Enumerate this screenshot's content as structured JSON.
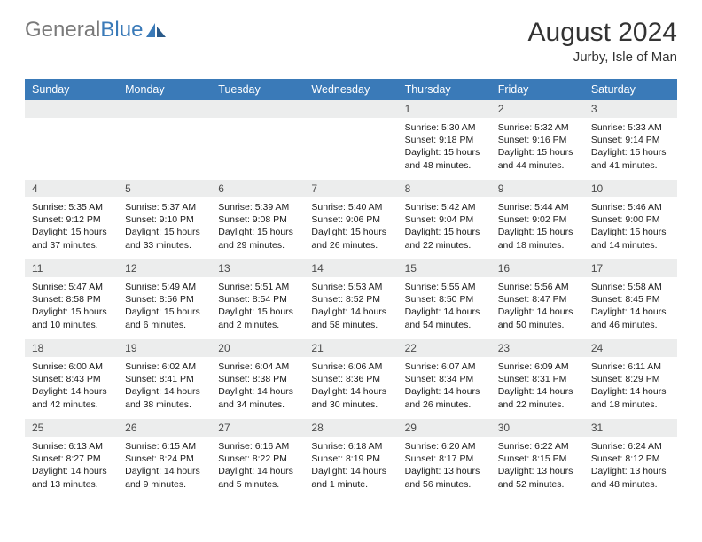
{
  "logo": {
    "textGray": "General",
    "textBlue": "Blue"
  },
  "header": {
    "title": "August 2024",
    "subtitle": "Jurby, Isle of Man"
  },
  "colors": {
    "headerBg": "#3a7ab8",
    "headerText": "#ffffff",
    "dayNumBg": "#eceded",
    "bodyText": "#1a1a1a",
    "logoGray": "#7a7a7a",
    "logoBlue": "#3a7ab8"
  },
  "weekdays": [
    "Sunday",
    "Monday",
    "Tuesday",
    "Wednesday",
    "Thursday",
    "Friday",
    "Saturday"
  ],
  "calendar": {
    "firstWeekday": 4,
    "daysInMonth": 31,
    "days": {
      "1": {
        "sunrise": "5:30 AM",
        "sunset": "9:18 PM",
        "daylight": "15 hours and 48 minutes."
      },
      "2": {
        "sunrise": "5:32 AM",
        "sunset": "9:16 PM",
        "daylight": "15 hours and 44 minutes."
      },
      "3": {
        "sunrise": "5:33 AM",
        "sunset": "9:14 PM",
        "daylight": "15 hours and 41 minutes."
      },
      "4": {
        "sunrise": "5:35 AM",
        "sunset": "9:12 PM",
        "daylight": "15 hours and 37 minutes."
      },
      "5": {
        "sunrise": "5:37 AM",
        "sunset": "9:10 PM",
        "daylight": "15 hours and 33 minutes."
      },
      "6": {
        "sunrise": "5:39 AM",
        "sunset": "9:08 PM",
        "daylight": "15 hours and 29 minutes."
      },
      "7": {
        "sunrise": "5:40 AM",
        "sunset": "9:06 PM",
        "daylight": "15 hours and 26 minutes."
      },
      "8": {
        "sunrise": "5:42 AM",
        "sunset": "9:04 PM",
        "daylight": "15 hours and 22 minutes."
      },
      "9": {
        "sunrise": "5:44 AM",
        "sunset": "9:02 PM",
        "daylight": "15 hours and 18 minutes."
      },
      "10": {
        "sunrise": "5:46 AM",
        "sunset": "9:00 PM",
        "daylight": "15 hours and 14 minutes."
      },
      "11": {
        "sunrise": "5:47 AM",
        "sunset": "8:58 PM",
        "daylight": "15 hours and 10 minutes."
      },
      "12": {
        "sunrise": "5:49 AM",
        "sunset": "8:56 PM",
        "daylight": "15 hours and 6 minutes."
      },
      "13": {
        "sunrise": "5:51 AM",
        "sunset": "8:54 PM",
        "daylight": "15 hours and 2 minutes."
      },
      "14": {
        "sunrise": "5:53 AM",
        "sunset": "8:52 PM",
        "daylight": "14 hours and 58 minutes."
      },
      "15": {
        "sunrise": "5:55 AM",
        "sunset": "8:50 PM",
        "daylight": "14 hours and 54 minutes."
      },
      "16": {
        "sunrise": "5:56 AM",
        "sunset": "8:47 PM",
        "daylight": "14 hours and 50 minutes."
      },
      "17": {
        "sunrise": "5:58 AM",
        "sunset": "8:45 PM",
        "daylight": "14 hours and 46 minutes."
      },
      "18": {
        "sunrise": "6:00 AM",
        "sunset": "8:43 PM",
        "daylight": "14 hours and 42 minutes."
      },
      "19": {
        "sunrise": "6:02 AM",
        "sunset": "8:41 PM",
        "daylight": "14 hours and 38 minutes."
      },
      "20": {
        "sunrise": "6:04 AM",
        "sunset": "8:38 PM",
        "daylight": "14 hours and 34 minutes."
      },
      "21": {
        "sunrise": "6:06 AM",
        "sunset": "8:36 PM",
        "daylight": "14 hours and 30 minutes."
      },
      "22": {
        "sunrise": "6:07 AM",
        "sunset": "8:34 PM",
        "daylight": "14 hours and 26 minutes."
      },
      "23": {
        "sunrise": "6:09 AM",
        "sunset": "8:31 PM",
        "daylight": "14 hours and 22 minutes."
      },
      "24": {
        "sunrise": "6:11 AM",
        "sunset": "8:29 PM",
        "daylight": "14 hours and 18 minutes."
      },
      "25": {
        "sunrise": "6:13 AM",
        "sunset": "8:27 PM",
        "daylight": "14 hours and 13 minutes."
      },
      "26": {
        "sunrise": "6:15 AM",
        "sunset": "8:24 PM",
        "daylight": "14 hours and 9 minutes."
      },
      "27": {
        "sunrise": "6:16 AM",
        "sunset": "8:22 PM",
        "daylight": "14 hours and 5 minutes."
      },
      "28": {
        "sunrise": "6:18 AM",
        "sunset": "8:19 PM",
        "daylight": "14 hours and 1 minute."
      },
      "29": {
        "sunrise": "6:20 AM",
        "sunset": "8:17 PM",
        "daylight": "13 hours and 56 minutes."
      },
      "30": {
        "sunrise": "6:22 AM",
        "sunset": "8:15 PM",
        "daylight": "13 hours and 52 minutes."
      },
      "31": {
        "sunrise": "6:24 AM",
        "sunset": "8:12 PM",
        "daylight": "13 hours and 48 minutes."
      }
    }
  },
  "labels": {
    "sunrise": "Sunrise:",
    "sunset": "Sunset:",
    "daylight": "Daylight:"
  }
}
